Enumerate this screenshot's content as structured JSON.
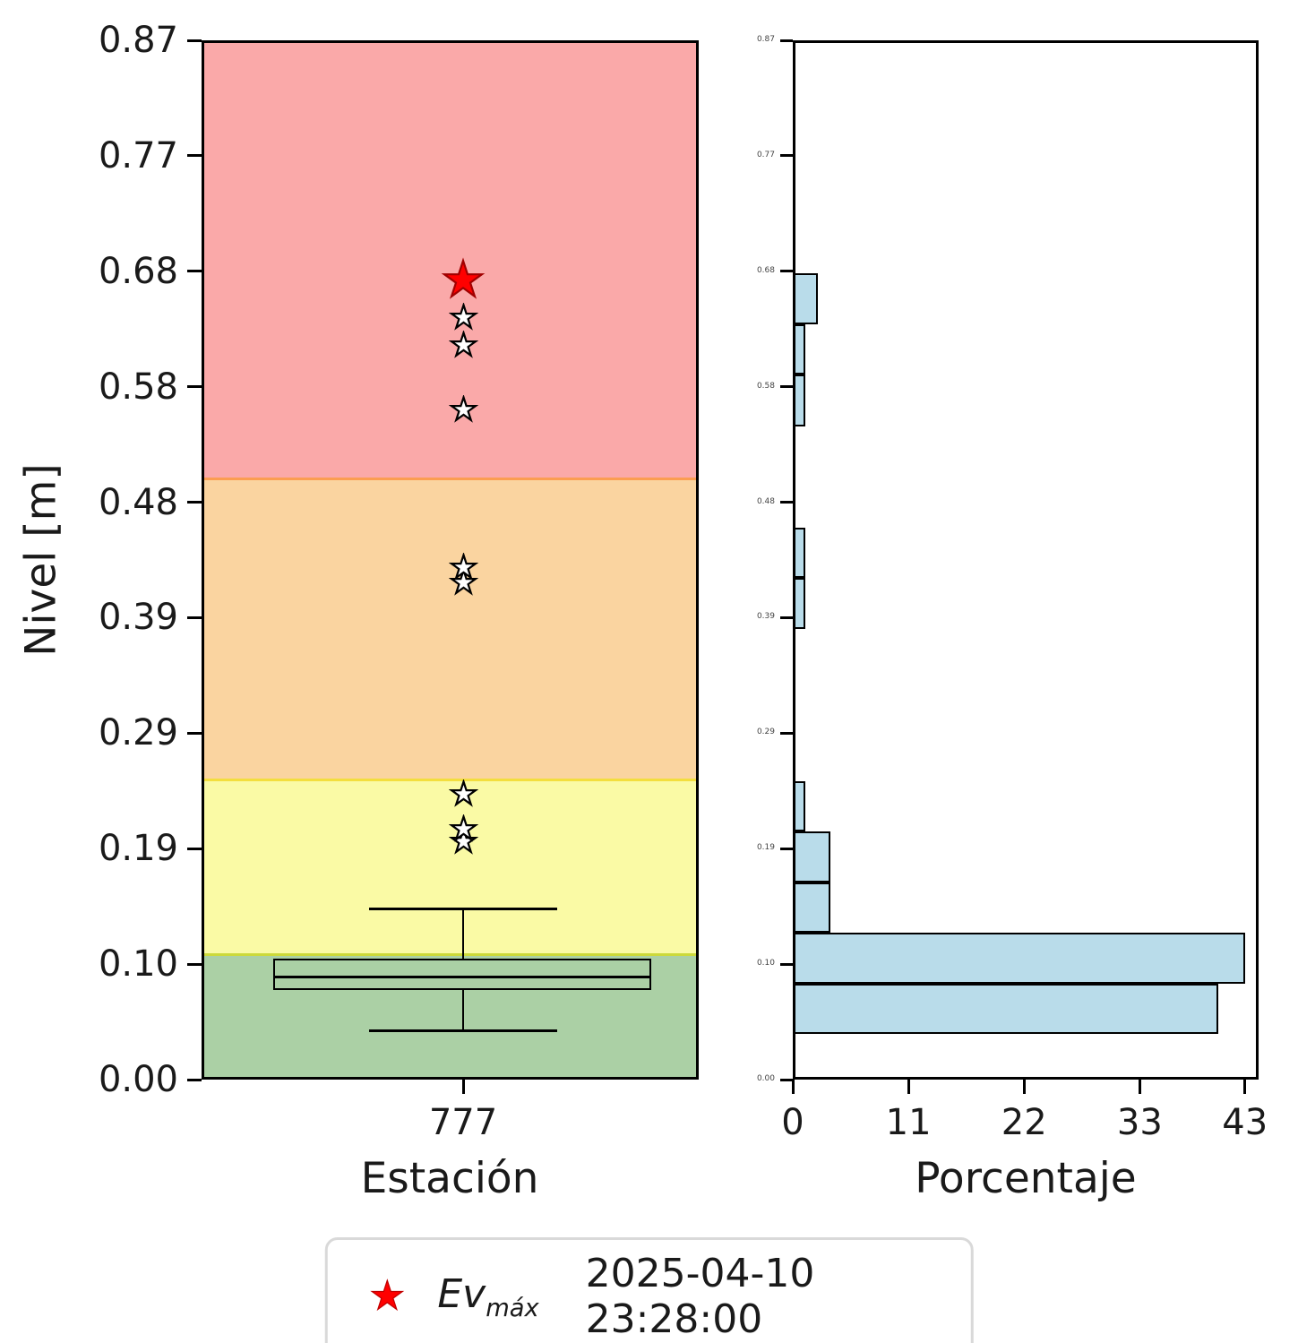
{
  "chart_data": {
    "type": "boxplot+histogram",
    "left_panel": {
      "xlabel": "Estación",
      "ylabel": "Nivel [m]",
      "station": "777",
      "ylim": [
        0,
        0.87
      ],
      "ytick_labels": [
        "0.00",
        "0.10",
        "0.19",
        "0.29",
        "0.39",
        "0.48",
        "0.58",
        "0.68",
        "0.77",
        "0.87"
      ],
      "zones": [
        {
          "name": "green",
          "from": 0,
          "to": 0.105,
          "color": "#abd0a5",
          "line": "#ccd93a"
        },
        {
          "name": "yellow",
          "from": 0.105,
          "to": 0.251,
          "color": "#fafaa5",
          "line": "#f3de3e"
        },
        {
          "name": "orange",
          "from": 0.251,
          "to": 0.503,
          "color": "#fad4a0",
          "line": "#fb9d52"
        },
        {
          "name": "red",
          "from": 0.503,
          "to": 0.87,
          "color": "#faa9a9",
          "line": null
        }
      ],
      "boxplot": {
        "whisker_low": 0.041,
        "q1": 0.075,
        "median": 0.086,
        "q3": 0.101,
        "whisker_high": 0.143
      },
      "outlier_levels": [
        0.199,
        0.21,
        0.239,
        0.416,
        0.429,
        0.561,
        0.615,
        0.638
      ],
      "ev_max": {
        "level": 0.669,
        "color": "#ff0000"
      }
    },
    "right_panel": {
      "xlabel": "Porcentaje",
      "xlim": [
        0,
        44.3
      ],
      "xticks": [
        0,
        11,
        22,
        33,
        43
      ],
      "xtick_labels": [
        "0",
        "11",
        "22",
        "33",
        "43"
      ],
      "ytick_labels": [
        "0.00",
        "0.10",
        "0.19",
        "0.29",
        "0.39",
        "0.48",
        "0.58",
        "0.68",
        "0.77",
        "0.87"
      ],
      "bar_color": "#b9dcea",
      "bars": [
        {
          "from": 0.038,
          "to": 0.08,
          "value": 40.5
        },
        {
          "from": 0.08,
          "to": 0.123,
          "value": 43.0
        },
        {
          "from": 0.123,
          "to": 0.165,
          "value": 3.6
        },
        {
          "from": 0.165,
          "to": 0.208,
          "value": 3.6
        },
        {
          "from": 0.208,
          "to": 0.25,
          "value": 1.2
        },
        {
          "from": 0.377,
          "to": 0.42,
          "value": 1.2
        },
        {
          "from": 0.42,
          "to": 0.462,
          "value": 1.2
        },
        {
          "from": 0.547,
          "to": 0.59,
          "value": 1.2
        },
        {
          "from": 0.59,
          "to": 0.632,
          "value": 1.2
        },
        {
          "from": 0.632,
          "to": 0.675,
          "value": 2.4
        }
      ]
    },
    "legend": {
      "marker": "star",
      "marker_color": "#ff0000",
      "label_main": "Ev",
      "label_sub": "máx",
      "date": "2025-04-10 23:28:00"
    }
  }
}
